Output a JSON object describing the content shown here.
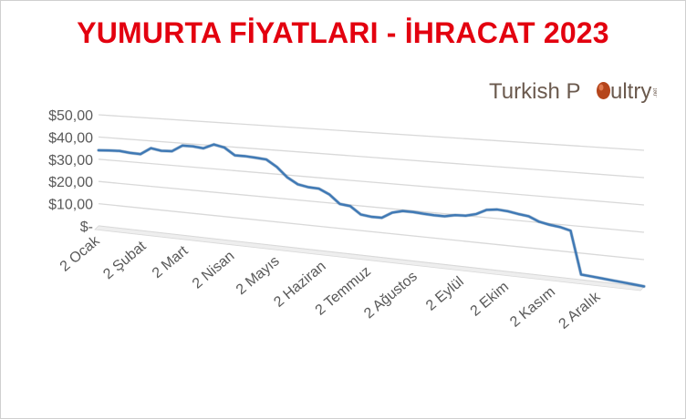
{
  "title": "YUMURTA FİYATLARI - İHRACAT 2023",
  "logo": {
    "text_part1": "Turkish P",
    "text_part2": "ultry",
    "suffix": ".net",
    "icon": "egg-icon"
  },
  "colors": {
    "title": "#e3000f",
    "line": "#3f79b5",
    "grid": "#d9d9d9",
    "axis_text": "#595959",
    "logo_text": "#6b5a4e",
    "logo_egg": "#b5451b"
  },
  "chart_data": {
    "type": "line",
    "title": "YUMURTA FİYATLARI - İHRACAT 2023",
    "xlabel": "",
    "ylabel": "",
    "ylim": [
      0,
      50
    ],
    "grid": true,
    "legend": "none",
    "y_ticks": [
      "$50,00",
      "$40,00",
      "$30,00",
      "$20,00",
      "$10,00",
      "$-"
    ],
    "y_tick_values": [
      50,
      40,
      30,
      20,
      10,
      0
    ],
    "x_ticks": [
      "2 Ocak",
      "2 Şubat",
      "2 Mart",
      "2 Nisan",
      "2 Mayıs",
      "2 Haziran",
      "2 Temmuz",
      "2 Ağustos",
      "2 Eylül",
      "2 Ekim",
      "2 Kasım",
      "2 Aralık"
    ],
    "x_tick_values": [
      0,
      31,
      59,
      90,
      120,
      151,
      181,
      212,
      243,
      273,
      304,
      334
    ],
    "series": [
      {
        "x": [
          0,
          7,
          14,
          21,
          28,
          35,
          42,
          49,
          56,
          63,
          70,
          77,
          84,
          91,
          98,
          105,
          112,
          119,
          126,
          133,
          140,
          147,
          154,
          161,
          168,
          175,
          182,
          189,
          196,
          203,
          210,
          217,
          224,
          231,
          238,
          245,
          252,
          259,
          266,
          273,
          280,
          287,
          294,
          301,
          308,
          315,
          322,
          329,
          336,
          343,
          350,
          357,
          364
        ],
        "values": [
          34.0,
          34.3,
          34.5,
          34.0,
          33.8,
          36.8,
          36.0,
          36.2,
          39.0,
          39.0,
          38.5,
          40.5,
          39.5,
          36.5,
          36.5,
          36.2,
          35.8,
          33.0,
          29.0,
          26.5,
          25.7,
          25.5,
          23.5,
          20.0,
          19.5,
          16.5,
          16.0,
          16.0,
          18.5,
          19.5,
          19.5,
          19.2,
          19.0,
          19.0,
          19.8,
          20.0,
          21.0,
          23.0,
          23.5,
          23.2,
          22.5,
          22.0,
          20.3,
          19.5,
          19.0,
          18.0,
          2.0,
          1.7,
          1.4,
          1.1,
          0.8,
          0.5,
          0.2
        ]
      }
    ]
  }
}
